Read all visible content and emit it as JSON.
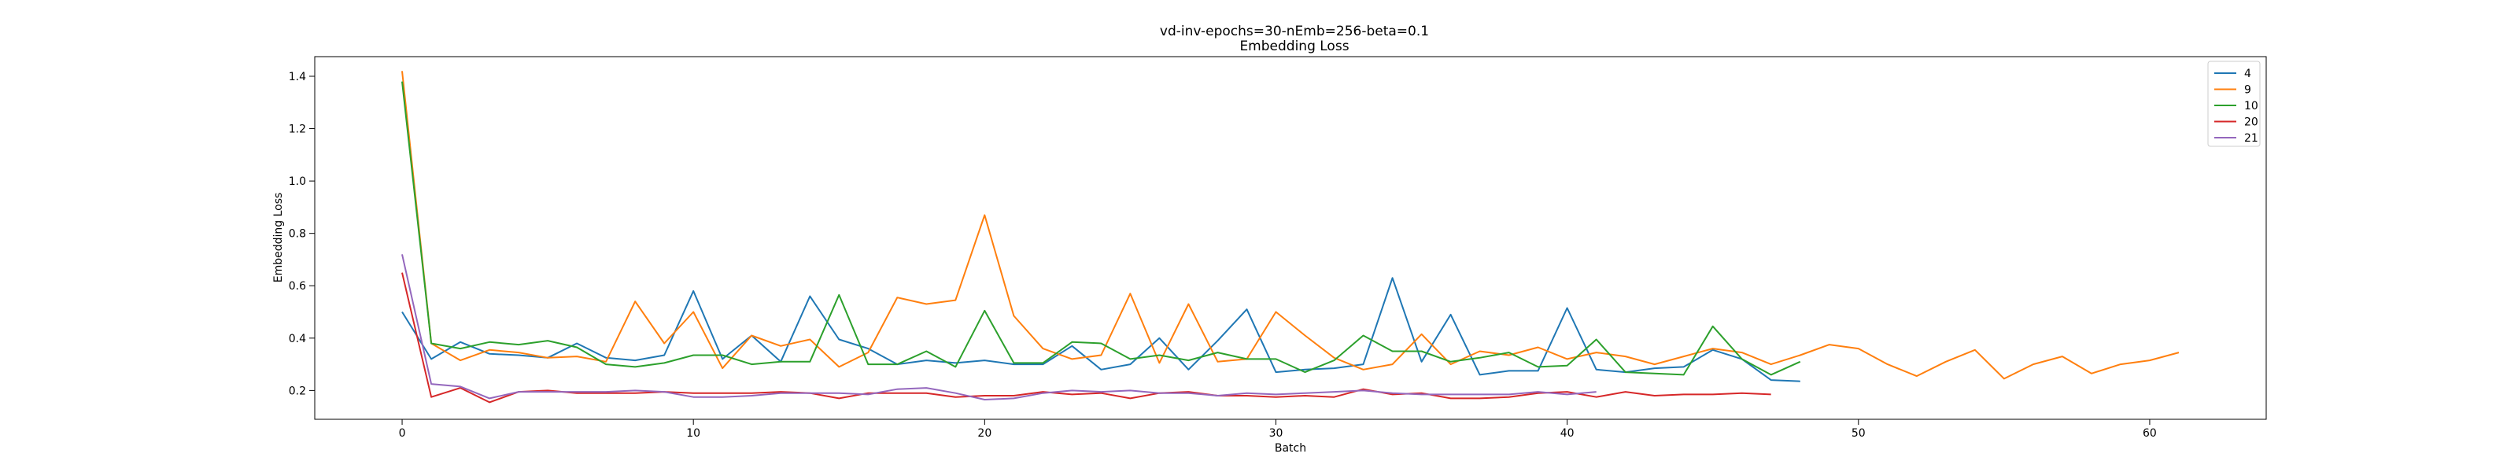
{
  "chart_data": {
    "type": "line",
    "title": "vd-inv-epochs=30-nEmb=256-beta=0.1",
    "subtitle": "Embedding Loss",
    "xlabel": "Batch",
    "ylabel": "Embedding Loss",
    "xlim": [
      -3,
      64
    ],
    "ylim": [
      0.09,
      1.475
    ],
    "xticks": [
      0,
      10,
      20,
      30,
      40,
      50,
      60
    ],
    "yticks": [
      0.2,
      0.4,
      0.6,
      0.8,
      1.0,
      1.2,
      1.4
    ],
    "ytick_labels": [
      "0.2",
      "0.4",
      "0.6",
      "0.8",
      "1.0",
      "1.2",
      "1.4"
    ],
    "grid": false,
    "legend_position": "top-right",
    "series": [
      {
        "name": "4",
        "color": "#1f77b4",
        "x": [
          0,
          1,
          2,
          3,
          4,
          5,
          6,
          7,
          8,
          9,
          10,
          11,
          12,
          13,
          14,
          15,
          16,
          17,
          18,
          19,
          20,
          21,
          22,
          23,
          24,
          25,
          26,
          27,
          28,
          29,
          30,
          31,
          32,
          33,
          34,
          35,
          36,
          37,
          38,
          39,
          40,
          41,
          42,
          43,
          44,
          45,
          46,
          47,
          48
        ],
        "values": [
          0.5,
          0.32,
          0.385,
          0.34,
          0.335,
          0.325,
          0.38,
          0.325,
          0.315,
          0.335,
          0.58,
          0.32,
          0.41,
          0.31,
          0.56,
          0.395,
          0.36,
          0.3,
          0.315,
          0.305,
          0.315,
          0.3,
          0.3,
          0.37,
          0.28,
          0.3,
          0.4,
          0.28,
          0.39,
          0.51,
          0.27,
          0.28,
          0.285,
          0.3,
          0.63,
          0.31,
          0.49,
          0.26,
          0.275,
          0.275,
          0.515,
          0.28,
          0.27,
          0.285,
          0.29,
          0.355,
          0.32,
          0.24,
          0.235
        ]
      },
      {
        "name": "9",
        "color": "#ff7f0e",
        "x": [
          0,
          1,
          2,
          3,
          4,
          5,
          6,
          7,
          8,
          9,
          10,
          11,
          12,
          13,
          14,
          15,
          16,
          17,
          18,
          19,
          20,
          21,
          22,
          23,
          24,
          25,
          26,
          27,
          28,
          29,
          30,
          31,
          32,
          33,
          34,
          35,
          36,
          37,
          38,
          39,
          40,
          41,
          42,
          43,
          44,
          45,
          46,
          47,
          48,
          49,
          50,
          51,
          52,
          53,
          54,
          55,
          56,
          57,
          58,
          59,
          60,
          61
        ],
        "values": [
          1.42,
          0.38,
          0.315,
          0.355,
          0.345,
          0.325,
          0.33,
          0.31,
          0.54,
          0.38,
          0.5,
          0.285,
          0.41,
          0.37,
          0.395,
          0.29,
          0.345,
          0.555,
          0.53,
          0.545,
          0.87,
          0.485,
          0.36,
          0.32,
          0.335,
          0.57,
          0.305,
          0.53,
          0.31,
          0.32,
          0.5,
          0.41,
          0.325,
          0.28,
          0.3,
          0.415,
          0.3,
          0.35,
          0.335,
          0.365,
          0.32,
          0.345,
          0.33,
          0.3,
          0.33,
          0.36,
          0.345,
          0.3,
          0.335,
          0.375,
          0.36,
          0.3,
          0.255,
          0.31,
          0.355,
          0.245,
          0.3,
          0.33,
          0.265,
          0.3,
          0.315,
          0.345
        ]
      },
      {
        "name": "10",
        "color": "#2ca02c",
        "x": [
          0,
          1,
          2,
          3,
          4,
          5,
          6,
          7,
          8,
          9,
          10,
          11,
          12,
          13,
          14,
          15,
          16,
          17,
          18,
          19,
          20,
          21,
          22,
          23,
          24,
          25,
          26,
          27,
          28,
          29,
          30,
          31,
          32,
          33,
          34,
          35,
          36,
          37,
          38,
          39,
          40,
          41,
          42,
          43,
          44,
          45,
          46,
          47,
          48
        ],
        "values": [
          1.38,
          0.38,
          0.36,
          0.385,
          0.375,
          0.39,
          0.365,
          0.3,
          0.29,
          0.305,
          0.335,
          0.335,
          0.3,
          0.31,
          0.31,
          0.565,
          0.3,
          0.3,
          0.35,
          0.29,
          0.505,
          0.305,
          0.305,
          0.385,
          0.38,
          0.32,
          0.335,
          0.315,
          0.345,
          0.32,
          0.32,
          0.27,
          0.315,
          0.41,
          0.35,
          0.35,
          0.31,
          0.325,
          0.345,
          0.29,
          0.295,
          0.395,
          0.27,
          0.265,
          0.26,
          0.445,
          0.32,
          0.26,
          0.31
        ]
      },
      {
        "name": "20",
        "color": "#d62728",
        "x": [
          0,
          1,
          2,
          3,
          4,
          5,
          6,
          7,
          8,
          9,
          10,
          11,
          12,
          13,
          14,
          15,
          16,
          17,
          18,
          19,
          20,
          21,
          22,
          23,
          24,
          25,
          26,
          27,
          28,
          29,
          30,
          31,
          32,
          33,
          34,
          35,
          36,
          37,
          38,
          39,
          40,
          41,
          42,
          43,
          44,
          45,
          46,
          47
        ],
        "values": [
          0.65,
          0.175,
          0.21,
          0.155,
          0.195,
          0.2,
          0.19,
          0.19,
          0.19,
          0.195,
          0.19,
          0.19,
          0.19,
          0.195,
          0.19,
          0.17,
          0.19,
          0.19,
          0.19,
          0.175,
          0.18,
          0.18,
          0.195,
          0.185,
          0.19,
          0.17,
          0.19,
          0.195,
          0.18,
          0.18,
          0.175,
          0.18,
          0.175,
          0.205,
          0.185,
          0.19,
          0.17,
          0.17,
          0.175,
          0.19,
          0.195,
          0.175,
          0.195,
          0.18,
          0.185,
          0.185,
          0.19,
          0.185
        ]
      },
      {
        "name": "21",
        "color": "#9467bd",
        "x": [
          0,
          1,
          2,
          3,
          4,
          5,
          6,
          7,
          8,
          9,
          10,
          11,
          12,
          13,
          14,
          15,
          16,
          17,
          18,
          19,
          20,
          21,
          22,
          23,
          24,
          25,
          26,
          27,
          28,
          29,
          30,
          31,
          32,
          33,
          34,
          35,
          36,
          37,
          38,
          39,
          40,
          41
        ],
        "values": [
          0.72,
          0.225,
          0.215,
          0.17,
          0.195,
          0.195,
          0.195,
          0.195,
          0.2,
          0.195,
          0.175,
          0.175,
          0.18,
          0.19,
          0.19,
          0.19,
          0.185,
          0.205,
          0.21,
          0.19,
          0.165,
          0.17,
          0.19,
          0.2,
          0.195,
          0.2,
          0.19,
          0.19,
          0.18,
          0.19,
          0.185,
          0.19,
          0.195,
          0.2,
          0.19,
          0.185,
          0.185,
          0.185,
          0.185,
          0.195,
          0.185,
          0.195
        ]
      }
    ]
  }
}
